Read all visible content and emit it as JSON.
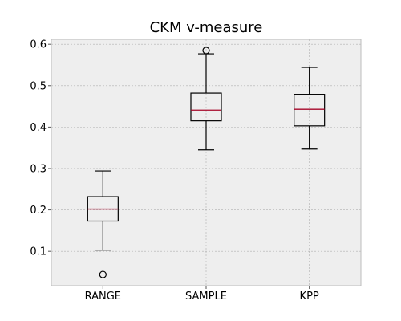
{
  "chart_data": {
    "type": "box",
    "title": "CKM v-measure",
    "xlabel": "",
    "ylabel": "",
    "categories": [
      "RANGE",
      "SAMPLE",
      "KPP"
    ],
    "boxes": [
      {
        "category": "RANGE",
        "whisker_low": 0.103,
        "q1": 0.173,
        "median": 0.202,
        "q3": 0.232,
        "whisker_high": 0.294,
        "outliers": [
          0.044
        ]
      },
      {
        "category": "SAMPLE",
        "whisker_low": 0.345,
        "q1": 0.415,
        "median": 0.441,
        "q3": 0.482,
        "whisker_high": 0.577,
        "outliers": [
          0.585
        ]
      },
      {
        "category": "KPP",
        "whisker_low": 0.347,
        "q1": 0.403,
        "median": 0.443,
        "q3": 0.479,
        "whisker_high": 0.544,
        "outliers": []
      }
    ],
    "ylim": [
      0.017,
      0.612
    ],
    "yticks": [
      0.1,
      0.2,
      0.3,
      0.4,
      0.5,
      0.6
    ],
    "ytick_labels": [
      "0.1",
      "0.2",
      "0.3",
      "0.4",
      "0.5",
      "0.6"
    ],
    "grid": true,
    "legend": "none",
    "colors": {
      "plot_background": "#eeeeee",
      "grid": "#b0b0b0",
      "frame": "#bcbcbc",
      "box": "#000000",
      "median": "#a60628"
    }
  }
}
